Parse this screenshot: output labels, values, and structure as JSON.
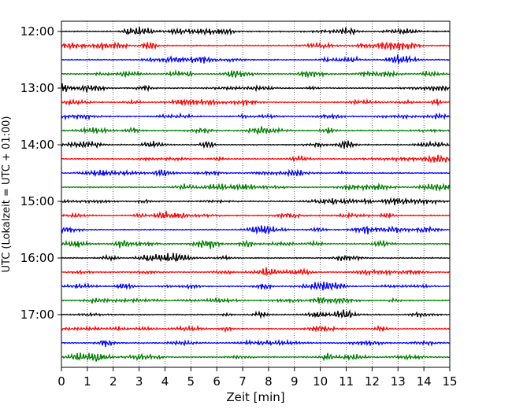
{
  "chart_data": {
    "type": "line",
    "title": "",
    "xlabel": "Zeit  [min]",
    "ylabel": "UTC (Lokalzeit = UTC + 01:00)",
    "xlim": [
      0,
      15
    ],
    "x_ticks": [
      "0",
      "1",
      "2",
      "3",
      "4",
      "5",
      "6",
      "7",
      "8",
      "9",
      "10",
      "11",
      "12",
      "13",
      "14",
      "15"
    ],
    "y_ticks": [
      "12:00",
      "13:00",
      "14:00",
      "15:00",
      "16:00",
      "17:00"
    ],
    "trace_start": "12:00",
    "trace_end": "17:45",
    "trace_interval_minutes": 15,
    "grid": "vertical dotted",
    "legend": "none",
    "colors": [
      "#000000",
      "#ff0000",
      "#0000ff",
      "#008000"
    ]
  }
}
